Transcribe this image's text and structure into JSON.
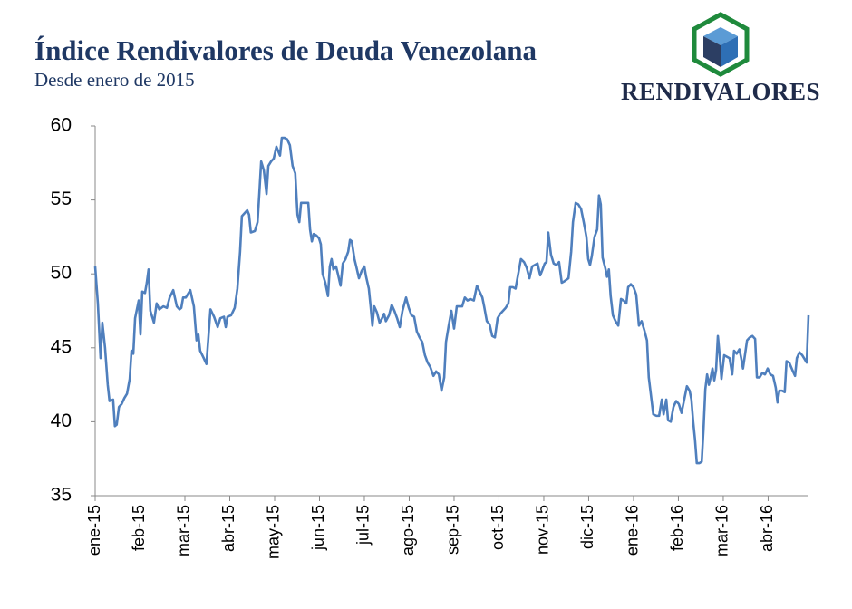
{
  "chart_data": {
    "type": "line",
    "title": "Índice Rendivalores de Deuda Venezolana",
    "subtitle": "Desde enero de 2015",
    "logo": "RENDIVALORES",
    "xlim": [
      0,
      15.9
    ],
    "xticks": [
      {
        "value": 0,
        "label": "ene-15"
      },
      {
        "value": 1,
        "label": "feb-15"
      },
      {
        "value": 2,
        "label": "mar-15"
      },
      {
        "value": 3,
        "label": "abr-15"
      },
      {
        "value": 4,
        "label": "may-15"
      },
      {
        "value": 5,
        "label": "jun-15"
      },
      {
        "value": 6,
        "label": "jul-15"
      },
      {
        "value": 7,
        "label": "ago-15"
      },
      {
        "value": 8,
        "label": "sep-15"
      },
      {
        "value": 9,
        "label": "oct-15"
      },
      {
        "value": 10,
        "label": "nov-15"
      },
      {
        "value": 11,
        "label": "dic-15"
      },
      {
        "value": 12,
        "label": "ene-16"
      },
      {
        "value": 13,
        "label": "feb-16"
      },
      {
        "value": 14,
        "label": "mar-16"
      },
      {
        "value": 15,
        "label": "abr-16"
      }
    ],
    "ylim": [
      35,
      60
    ],
    "yticks": [
      35,
      40,
      45,
      50,
      55,
      60
    ],
    "grid": false,
    "x": [
      0,
      0.06,
      0.12,
      0.16,
      0.22,
      0.28,
      0.32,
      0.4,
      0.44,
      0.48,
      0.53,
      0.59,
      0.65,
      0.71,
      0.77,
      0.81,
      0.85,
      0.89,
      0.93,
      0.97,
      1.01,
      1.05,
      1.11,
      1.15,
      1.19,
      1.23,
      1.31,
      1.37,
      1.43,
      1.52,
      1.6,
      1.66,
      1.74,
      1.82,
      1.88,
      1.92,
      1.96,
      2.02,
      2.12,
      2.2,
      2.26,
      2.3,
      2.34,
      2.42,
      2.48,
      2.57,
      2.65,
      2.73,
      2.79,
      2.87,
      2.91,
      2.95,
      3.03,
      3.11,
      3.17,
      3.23,
      3.27,
      3.33,
      3.39,
      3.43,
      3.47,
      3.56,
      3.62,
      3.66,
      3.7,
      3.76,
      3.82,
      3.86,
      3.92,
      3.98,
      4.04,
      4.08,
      4.12,
      4.16,
      4.22,
      4.28,
      4.34,
      4.4,
      4.46,
      4.51,
      4.55,
      4.59,
      4.67,
      4.75,
      4.79,
      4.83,
      4.87,
      4.93,
      4.99,
      5.03,
      5.07,
      5.13,
      5.19,
      5.23,
      5.27,
      5.31,
      5.37,
      5.41,
      5.47,
      5.52,
      5.58,
      5.64,
      5.68,
      5.72,
      5.78,
      5.82,
      5.88,
      5.94,
      6.0,
      6.04,
      6.1,
      6.14,
      6.18,
      6.22,
      6.28,
      6.34,
      6.38,
      6.44,
      6.48,
      6.55,
      6.61,
      6.67,
      6.73,
      6.79,
      6.85,
      6.93,
      6.99,
      7.05,
      7.11,
      7.17,
      7.23,
      7.29,
      7.35,
      7.41,
      7.47,
      7.54,
      7.6,
      7.66,
      7.72,
      7.78,
      7.82,
      7.88,
      7.94,
      8.0,
      8.06,
      8.12,
      8.18,
      8.24,
      8.3,
      8.36,
      8.44,
      8.51,
      8.57,
      8.63,
      8.67,
      8.73,
      8.79,
      8.85,
      8.91,
      8.97,
      9.03,
      9.09,
      9.15,
      9.21,
      9.25,
      9.31,
      9.37,
      9.43,
      9.49,
      9.56,
      9.62,
      9.68,
      9.74,
      9.8,
      9.86,
      9.92,
      9.96,
      10.02,
      10.06,
      10.1,
      10.16,
      10.22,
      10.28,
      10.34,
      10.4,
      10.46,
      10.55,
      10.61,
      10.65,
      10.71,
      10.77,
      10.83,
      10.89,
      10.95,
      10.99,
      11.03,
      11.07,
      11.13,
      11.19,
      11.23,
      11.27,
      11.31,
      11.37,
      11.41,
      11.45,
      11.49,
      11.54,
      11.6,
      11.66,
      11.72,
      11.78,
      11.84,
      11.88,
      11.94,
      12.0,
      12.06,
      12.12,
      12.18,
      12.24,
      12.3,
      12.34,
      12.38,
      12.44,
      12.51,
      12.57,
      12.63,
      12.67,
      12.73,
      12.77,
      12.83,
      12.89,
      12.95,
      13.01,
      13.07,
      13.13,
      13.19,
      13.25,
      13.29,
      13.33,
      13.37,
      13.41,
      13.47,
      13.52,
      13.56,
      13.6,
      13.64,
      13.68,
      13.72,
      13.76,
      13.8,
      13.84,
      13.88,
      13.92,
      13.96,
      14.02,
      14.08,
      14.14,
      14.2,
      14.24,
      14.3,
      14.36,
      14.4,
      14.44,
      14.53,
      14.59,
      14.65,
      14.71,
      14.75,
      14.81,
      14.87,
      14.93,
      14.99,
      15.05,
      15.11,
      15.17,
      15.21,
      15.25,
      15.31,
      15.37,
      15.41,
      15.47,
      15.54,
      15.6,
      15.64,
      15.7,
      15.76,
      15.82,
      15.86,
      15.9
    ],
    "series": [
      {
        "color": "#4f7fbd",
        "values": [
          50.5,
          48,
          44.3,
          46.7,
          45,
          42.5,
          41.4,
          41.5,
          39.7,
          39.8,
          41,
          41.2,
          41.6,
          41.9,
          42.9,
          44.8,
          44.6,
          47,
          47.6,
          48.2,
          45.9,
          48.8,
          48.7,
          49.4,
          50.3,
          47.5,
          46.7,
          48,
          47.6,
          47.8,
          47.7,
          48.4,
          48.9,
          47.8,
          47.6,
          47.7,
          48.4,
          48.4,
          48.9,
          47.8,
          45.5,
          45.9,
          44.8,
          44.3,
          43.9,
          47.6,
          47.1,
          46.4,
          47,
          47.1,
          46.4,
          47.1,
          47.2,
          47.7,
          49,
          51.5,
          53.9,
          54.1,
          54.3,
          54,
          52.8,
          52.9,
          53.5,
          55.5,
          57.6,
          57,
          55.4,
          57.3,
          57.6,
          57.8,
          58.6,
          58.3,
          58,
          59.2,
          59.2,
          59.1,
          58.7,
          57.3,
          56.8,
          54,
          53.5,
          54.8,
          54.8,
          54.8,
          53,
          52.2,
          52.7,
          52.6,
          52.4,
          52,
          50,
          49.4,
          48.5,
          50.5,
          51,
          50.3,
          50.5,
          50,
          49.2,
          50.7,
          51,
          51.5,
          52.3,
          52.2,
          51,
          50.5,
          49.7,
          50.2,
          50.5,
          49.8,
          49,
          47.8,
          46.5,
          47.8,
          47.4,
          46.7,
          46.9,
          47.3,
          46.8,
          47.2,
          47.9,
          47.5,
          47,
          46.4,
          47.5,
          48.4,
          47.7,
          47.2,
          47.1,
          46.1,
          45.7,
          45.4,
          44.5,
          44,
          43.7,
          43.1,
          43.4,
          43.2,
          42.1,
          43,
          45.4,
          46.5,
          47.5,
          46.3,
          47.8,
          47.8,
          47.8,
          48.4,
          48.2,
          48.3,
          48.2,
          49.2,
          48.8,
          48.4,
          47.8,
          46.8,
          46.6,
          45.8,
          45.7,
          47,
          47.3,
          47.5,
          47.7,
          48,
          49.1,
          49.1,
          49,
          50,
          51,
          50.8,
          50.4,
          49.7,
          50.5,
          50.6,
          50.7,
          49.9,
          50.2,
          50.7,
          50.8,
          52.8,
          51.3,
          50.7,
          50.6,
          50.8,
          49.4,
          49.5,
          49.7,
          51.5,
          53.5,
          54.8,
          54.7,
          54.4,
          53.5,
          52.5,
          51,
          50.6,
          51.2,
          52.5,
          53,
          55.3,
          54.7,
          51.1,
          50.4,
          49.8,
          50.3,
          48.5,
          47.2,
          46.8,
          46.5,
          48.3,
          48.2,
          48,
          49.1,
          49.3,
          49.1,
          48.6,
          46.5,
          46.8,
          46.2,
          45.5,
          43,
          42,
          40.5,
          40.4,
          40.4,
          41.5,
          40.5,
          41.5,
          40.1,
          40,
          41,
          41.4,
          41.2,
          40.6,
          41.5,
          42.4,
          42.1,
          41.5,
          40,
          38.8,
          37.2,
          37.2,
          37.3,
          39.5,
          42.2,
          43.2,
          42.5,
          43,
          43.6,
          42.8,
          43.5,
          45.8,
          44.5,
          42.9,
          44.5,
          44.4,
          44.3,
          43.2,
          44.8,
          44.6,
          44.9,
          44.3,
          43.6,
          45.5,
          45.7,
          45.8,
          45.6,
          43,
          43,
          43.3,
          43.2,
          43.6,
          43.2,
          43.1,
          42.3,
          41.3,
          42.1,
          42.1,
          42,
          44.1,
          44,
          43.5,
          43.1,
          44.3,
          44.7,
          44.5,
          44.2,
          44,
          47.2
        ]
      }
    ]
  }
}
